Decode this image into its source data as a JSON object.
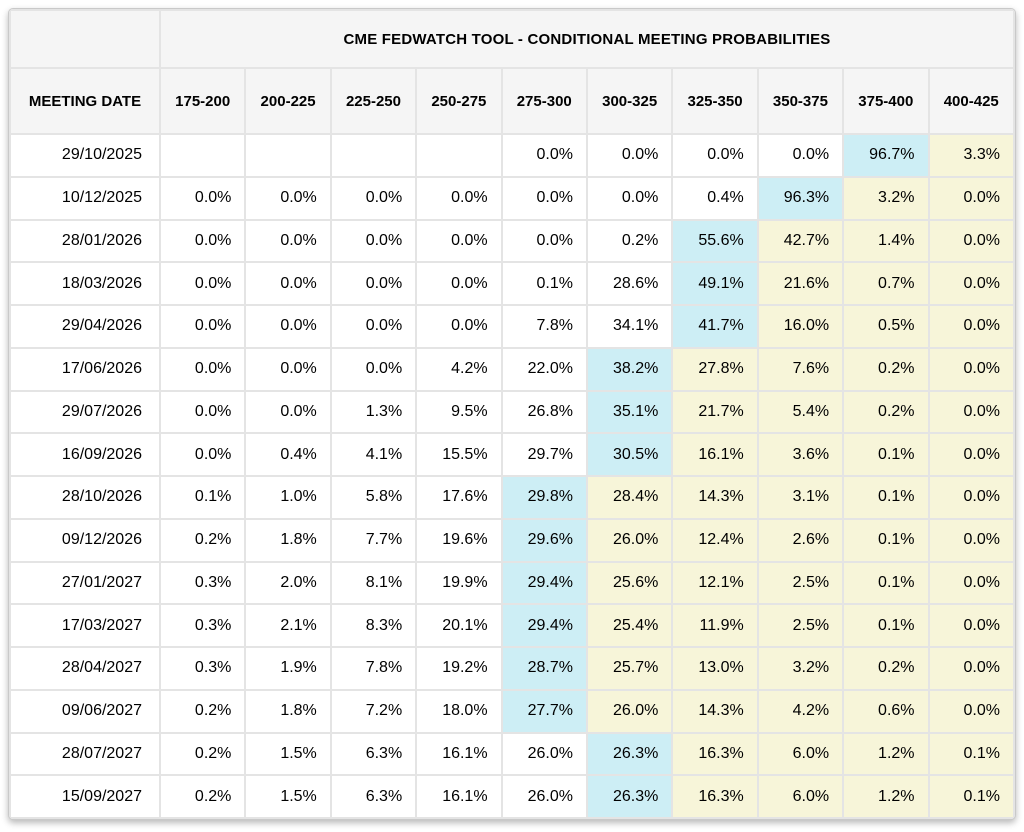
{
  "header": {
    "title": "CME FEDWATCH TOOL - CONDITIONAL MEETING PROBABILITIES",
    "date_column_label": "MEETING DATE",
    "rate_bins": [
      "175-200",
      "200-225",
      "225-250",
      "250-275",
      "275-300",
      "300-325",
      "325-350",
      "350-375",
      "375-400",
      "400-425"
    ]
  },
  "table": {
    "rows": [
      {
        "date": "29/10/2025",
        "values": [
          "",
          "",
          "",
          "",
          "0.0%",
          "0.0%",
          "0.0%",
          "0.0%",
          "96.7%",
          "3.3%"
        ],
        "hl": [
          "",
          "",
          "",
          "",
          "",
          "",
          "",
          "",
          "b",
          "y"
        ]
      },
      {
        "date": "10/12/2025",
        "values": [
          "0.0%",
          "0.0%",
          "0.0%",
          "0.0%",
          "0.0%",
          "0.0%",
          "0.4%",
          "96.3%",
          "3.2%",
          "0.0%"
        ],
        "hl": [
          "",
          "",
          "",
          "",
          "",
          "",
          "",
          "b",
          "y",
          "y"
        ]
      },
      {
        "date": "28/01/2026",
        "values": [
          "0.0%",
          "0.0%",
          "0.0%",
          "0.0%",
          "0.0%",
          "0.2%",
          "55.6%",
          "42.7%",
          "1.4%",
          "0.0%"
        ],
        "hl": [
          "",
          "",
          "",
          "",
          "",
          "",
          "b",
          "y",
          "y",
          "y"
        ]
      },
      {
        "date": "18/03/2026",
        "values": [
          "0.0%",
          "0.0%",
          "0.0%",
          "0.0%",
          "0.1%",
          "28.6%",
          "49.1%",
          "21.6%",
          "0.7%",
          "0.0%"
        ],
        "hl": [
          "",
          "",
          "",
          "",
          "",
          "",
          "b",
          "y",
          "y",
          "y"
        ]
      },
      {
        "date": "29/04/2026",
        "values": [
          "0.0%",
          "0.0%",
          "0.0%",
          "0.0%",
          "7.8%",
          "34.1%",
          "41.7%",
          "16.0%",
          "0.5%",
          "0.0%"
        ],
        "hl": [
          "",
          "",
          "",
          "",
          "",
          "",
          "b",
          "y",
          "y",
          "y"
        ]
      },
      {
        "date": "17/06/2026",
        "values": [
          "0.0%",
          "0.0%",
          "0.0%",
          "4.2%",
          "22.0%",
          "38.2%",
          "27.8%",
          "7.6%",
          "0.2%",
          "0.0%"
        ],
        "hl": [
          "",
          "",
          "",
          "",
          "",
          "b",
          "y",
          "y",
          "y",
          "y"
        ]
      },
      {
        "date": "29/07/2026",
        "values": [
          "0.0%",
          "0.0%",
          "1.3%",
          "9.5%",
          "26.8%",
          "35.1%",
          "21.7%",
          "5.4%",
          "0.2%",
          "0.0%"
        ],
        "hl": [
          "",
          "",
          "",
          "",
          "",
          "b",
          "y",
          "y",
          "y",
          "y"
        ]
      },
      {
        "date": "16/09/2026",
        "values": [
          "0.0%",
          "0.4%",
          "4.1%",
          "15.5%",
          "29.7%",
          "30.5%",
          "16.1%",
          "3.6%",
          "0.1%",
          "0.0%"
        ],
        "hl": [
          "",
          "",
          "",
          "",
          "",
          "b",
          "y",
          "y",
          "y",
          "y"
        ]
      },
      {
        "date": "28/10/2026",
        "values": [
          "0.1%",
          "1.0%",
          "5.8%",
          "17.6%",
          "29.8%",
          "28.4%",
          "14.3%",
          "3.1%",
          "0.1%",
          "0.0%"
        ],
        "hl": [
          "",
          "",
          "",
          "",
          "b",
          "y",
          "y",
          "y",
          "y",
          "y"
        ]
      },
      {
        "date": "09/12/2026",
        "values": [
          "0.2%",
          "1.8%",
          "7.7%",
          "19.6%",
          "29.6%",
          "26.0%",
          "12.4%",
          "2.6%",
          "0.1%",
          "0.0%"
        ],
        "hl": [
          "",
          "",
          "",
          "",
          "b",
          "y",
          "y",
          "y",
          "y",
          "y"
        ]
      },
      {
        "date": "27/01/2027",
        "values": [
          "0.3%",
          "2.0%",
          "8.1%",
          "19.9%",
          "29.4%",
          "25.6%",
          "12.1%",
          "2.5%",
          "0.1%",
          "0.0%"
        ],
        "hl": [
          "",
          "",
          "",
          "",
          "b",
          "y",
          "y",
          "y",
          "y",
          "y"
        ]
      },
      {
        "date": "17/03/2027",
        "values": [
          "0.3%",
          "2.1%",
          "8.3%",
          "20.1%",
          "29.4%",
          "25.4%",
          "11.9%",
          "2.5%",
          "0.1%",
          "0.0%"
        ],
        "hl": [
          "",
          "",
          "",
          "",
          "b",
          "y",
          "y",
          "y",
          "y",
          "y"
        ]
      },
      {
        "date": "28/04/2027",
        "values": [
          "0.3%",
          "1.9%",
          "7.8%",
          "19.2%",
          "28.7%",
          "25.7%",
          "13.0%",
          "3.2%",
          "0.2%",
          "0.0%"
        ],
        "hl": [
          "",
          "",
          "",
          "",
          "b",
          "y",
          "y",
          "y",
          "y",
          "y"
        ]
      },
      {
        "date": "09/06/2027",
        "values": [
          "0.2%",
          "1.8%",
          "7.2%",
          "18.0%",
          "27.7%",
          "26.0%",
          "14.3%",
          "4.2%",
          "0.6%",
          "0.0%"
        ],
        "hl": [
          "",
          "",
          "",
          "",
          "b",
          "y",
          "y",
          "y",
          "y",
          "y"
        ]
      },
      {
        "date": "28/07/2027",
        "values": [
          "0.2%",
          "1.5%",
          "6.3%",
          "16.1%",
          "26.0%",
          "26.3%",
          "16.3%",
          "6.0%",
          "1.2%",
          "0.1%"
        ],
        "hl": [
          "",
          "",
          "",
          "",
          "",
          "b",
          "y",
          "y",
          "y",
          "y"
        ]
      },
      {
        "date": "15/09/2027",
        "values": [
          "0.2%",
          "1.5%",
          "6.3%",
          "16.1%",
          "26.0%",
          "26.3%",
          "16.3%",
          "6.0%",
          "1.2%",
          "0.1%"
        ],
        "hl": [
          "",
          "",
          "",
          "",
          "",
          "b",
          "y",
          "y",
          "y",
          "y"
        ]
      }
    ]
  },
  "colors": {
    "highlight_max_blue": "#cdeef5",
    "highlight_right_yellow": "#f7f5d9",
    "header_bg": "#f5f5f5",
    "grid_line": "#e4e4e4"
  }
}
